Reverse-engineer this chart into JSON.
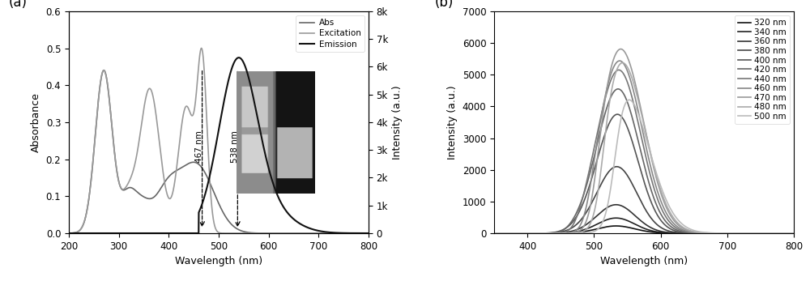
{
  "panel_a": {
    "xlabel": "Wavelength (nm)",
    "ylabel_left": "Absorbance",
    "ylabel_right": "Intensity (a.u.)",
    "xlim": [
      200,
      800
    ],
    "ylim_left": [
      0,
      0.6
    ],
    "ylim_right": [
      0,
      8000
    ],
    "yticks_left": [
      0.0,
      0.1,
      0.2,
      0.3,
      0.4,
      0.5,
      0.6
    ],
    "yticks_right": [
      0,
      1000,
      2000,
      3000,
      4000,
      5000,
      6000,
      7000,
      8000
    ],
    "ytick_labels_right": [
      "0",
      "1k",
      "2k",
      "3k",
      "4k",
      "5k",
      "6k",
      "7k",
      "8k"
    ],
    "xticks": [
      200,
      300,
      400,
      500,
      600,
      700,
      800
    ],
    "abs_color": "#666666",
    "excitation_color": "#999999",
    "emission_color": "#111111",
    "legend_entries": [
      "Abs",
      "Excitation",
      "Emission"
    ]
  },
  "panel_b": {
    "xlabel": "Wavelength (nm)",
    "ylabel": "Intensity (a.u.)",
    "xlim": [
      350,
      800
    ],
    "ylim": [
      0,
      7000
    ],
    "yticks": [
      0,
      1000,
      2000,
      3000,
      4000,
      5000,
      6000,
      7000
    ],
    "xticks": [
      400,
      500,
      600,
      700,
      800
    ],
    "excitation_wavelengths": [
      320,
      340,
      360,
      380,
      400,
      420,
      440,
      460,
      470,
      480,
      500
    ],
    "peak_intensities": [
      230,
      480,
      900,
      2100,
      3750,
      4550,
      5150,
      5450,
      5850,
      5480,
      4600
    ],
    "peak_positions": [
      533,
      533,
      533,
      534,
      535,
      536,
      537,
      538,
      539,
      540,
      543
    ],
    "peak_widths": [
      28,
      28,
      29,
      30,
      31,
      32,
      33,
      34,
      35,
      36,
      38
    ],
    "line_colors": [
      "#111111",
      "#222222",
      "#333333",
      "#444444",
      "#555555",
      "#666666",
      "#777777",
      "#888888",
      "#999999",
      "#aaaaaa",
      "#bbbbbb"
    ]
  }
}
